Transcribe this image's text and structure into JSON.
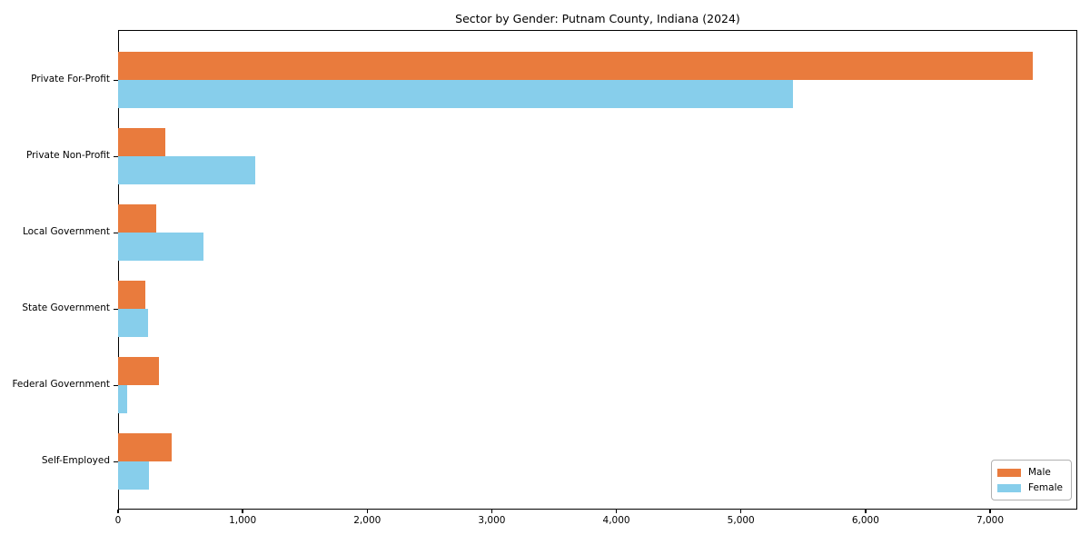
{
  "chart_data": {
    "type": "bar",
    "orientation": "horizontal",
    "title": "Sector by Gender: Putnam County, Indiana (2024)",
    "categories": [
      "Private For-Profit",
      "Private Non-Profit",
      "Local Government",
      "State Government",
      "Federal Government",
      "Self-Employed"
    ],
    "series": [
      {
        "name": "Male",
        "color": "#e97b3d",
        "values": [
          7340,
          380,
          305,
          220,
          330,
          430
        ]
      },
      {
        "name": "Female",
        "color": "#87ceeb",
        "values": [
          5420,
          1100,
          685,
          240,
          75,
          245
        ]
      }
    ],
    "xlabel": "",
    "ylabel": "",
    "xlim": [
      0,
      7700
    ],
    "xticks": [
      0,
      1000,
      2000,
      3000,
      4000,
      5000,
      6000,
      7000
    ],
    "xticklabels": [
      "0",
      "1,000",
      "2,000",
      "3,000",
      "4,000",
      "5,000",
      "6,000",
      "7,000"
    ],
    "grid": false,
    "legend": {
      "position": "lower right",
      "labels": [
        "Male",
        "Female"
      ]
    },
    "colors": {
      "background": "#ffffff",
      "spine": "#000000",
      "legend_border": "#b0b0b0",
      "text": "#000000"
    }
  }
}
